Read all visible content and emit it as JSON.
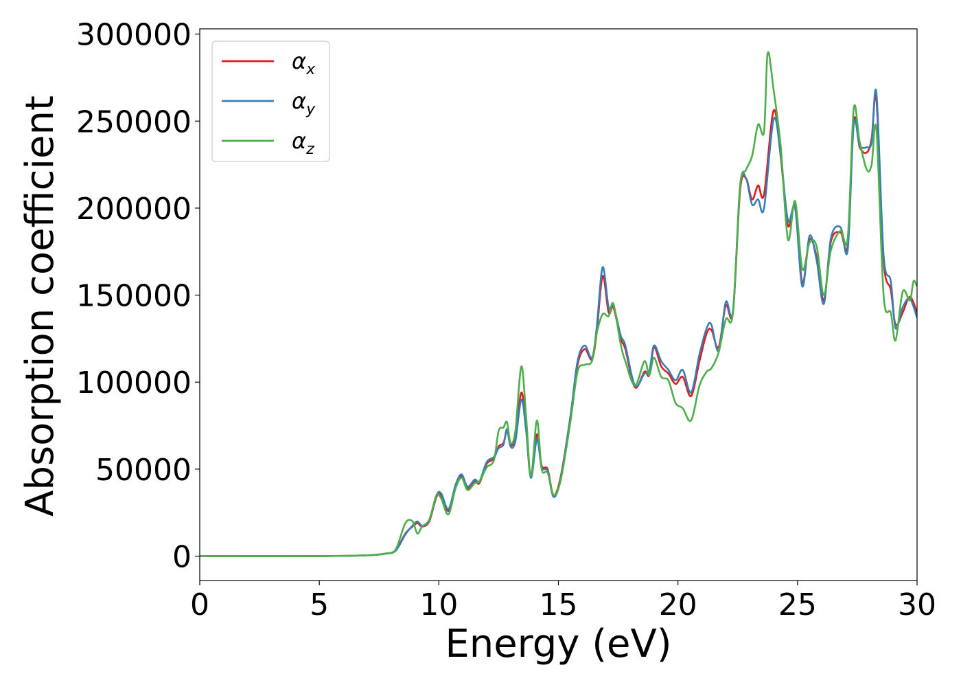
{
  "chart_data": {
    "type": "line",
    "xlabel": "Energy (eV)",
    "ylabel": "Absorption coefficient",
    "xlim": [
      0,
      30
    ],
    "ylim": [
      -14000,
      303000
    ],
    "xticks": [
      "0",
      "5",
      "10",
      "15",
      "20",
      "25",
      "30"
    ],
    "yticks": [
      "0",
      "50000",
      "100000",
      "150000",
      "200000",
      "250000",
      "300000"
    ],
    "grid": false,
    "legend_position": "top-left",
    "series": [
      {
        "name": "α",
        "subscript": "x",
        "color": "#e41a1c",
        "points": [
          [
            0,
            0
          ],
          [
            5,
            0
          ],
          [
            7,
            500
          ],
          [
            7.8,
            1500
          ],
          [
            8.2,
            3500
          ],
          [
            8.6,
            13000
          ],
          [
            8.9,
            17000
          ],
          [
            9.1,
            19000
          ],
          [
            9.3,
            17000
          ],
          [
            9.6,
            20000
          ],
          [
            9.9,
            34000
          ],
          [
            10.1,
            35000
          ],
          [
            10.4,
            26000
          ],
          [
            10.7,
            40000
          ],
          [
            10.95,
            46000
          ],
          [
            11.2,
            39000
          ],
          [
            11.5,
            43000
          ],
          [
            11.7,
            42000
          ],
          [
            12.0,
            53000
          ],
          [
            12.3,
            56000
          ],
          [
            12.5,
            63000
          ],
          [
            12.7,
            65000
          ],
          [
            12.85,
            72000
          ],
          [
            13.0,
            64000
          ],
          [
            13.2,
            68000
          ],
          [
            13.45,
            94000
          ],
          [
            13.65,
            74000
          ],
          [
            13.85,
            46000
          ],
          [
            14.1,
            70000
          ],
          [
            14.3,
            52000
          ],
          [
            14.55,
            50000
          ],
          [
            14.8,
            35000
          ],
          [
            15.1,
            46000
          ],
          [
            15.5,
            80000
          ],
          [
            15.8,
            110000
          ],
          [
            16.1,
            119000
          ],
          [
            16.4,
            113000
          ],
          [
            16.6,
            128000
          ],
          [
            16.85,
            161000
          ],
          [
            17.1,
            140000
          ],
          [
            17.3,
            143000
          ],
          [
            17.6,
            125000
          ],
          [
            17.8,
            119000
          ],
          [
            18.2,
            97000
          ],
          [
            18.6,
            106000
          ],
          [
            18.8,
            104000
          ],
          [
            19.0,
            120000
          ],
          [
            19.3,
            109000
          ],
          [
            19.6,
            105000
          ],
          [
            19.9,
            99000
          ],
          [
            20.2,
            103000
          ],
          [
            20.55,
            92000
          ],
          [
            20.9,
            112000
          ],
          [
            21.2,
            128000
          ],
          [
            21.4,
            130000
          ],
          [
            21.7,
            120000
          ],
          [
            22.0,
            144000
          ],
          [
            22.3,
            140000
          ],
          [
            22.6,
            210000
          ],
          [
            22.85,
            217000
          ],
          [
            23.1,
            205000
          ],
          [
            23.35,
            213000
          ],
          [
            23.6,
            208000
          ],
          [
            24.0,
            256000
          ],
          [
            24.3,
            229000
          ],
          [
            24.6,
            190000
          ],
          [
            24.9,
            201000
          ],
          [
            25.2,
            157000
          ],
          [
            25.5,
            182000
          ],
          [
            25.8,
            172000
          ],
          [
            26.1,
            147000
          ],
          [
            26.4,
            181000
          ],
          [
            26.8,
            186000
          ],
          [
            27.1,
            179000
          ],
          [
            27.35,
            250000
          ],
          [
            27.6,
            235000
          ],
          [
            27.9,
            232000
          ],
          [
            28.1,
            240000
          ],
          [
            28.3,
            262000
          ],
          [
            28.6,
            170000
          ],
          [
            28.9,
            153000
          ],
          [
            29.1,
            133000
          ],
          [
            29.4,
            140000
          ],
          [
            29.7,
            149000
          ],
          [
            30,
            140000
          ]
        ]
      },
      {
        "name": "α",
        "subscript": "y",
        "color": "#377eb8",
        "points": [
          [
            0,
            0
          ],
          [
            5,
            0
          ],
          [
            7,
            500
          ],
          [
            7.8,
            1500
          ],
          [
            8.2,
            3200
          ],
          [
            8.6,
            12500
          ],
          [
            8.9,
            17500
          ],
          [
            9.1,
            20000
          ],
          [
            9.3,
            17500
          ],
          [
            9.6,
            20500
          ],
          [
            9.9,
            35000
          ],
          [
            10.1,
            36000
          ],
          [
            10.4,
            27000
          ],
          [
            10.7,
            41000
          ],
          [
            10.95,
            47000
          ],
          [
            11.2,
            40000
          ],
          [
            11.5,
            44000
          ],
          [
            11.7,
            43000
          ],
          [
            12.0,
            54000
          ],
          [
            12.3,
            57000
          ],
          [
            12.5,
            62000
          ],
          [
            12.7,
            64000
          ],
          [
            12.85,
            73000
          ],
          [
            13.0,
            63000
          ],
          [
            13.2,
            66000
          ],
          [
            13.45,
            90000
          ],
          [
            13.65,
            72000
          ],
          [
            13.85,
            45000
          ],
          [
            14.1,
            67000
          ],
          [
            14.3,
            51000
          ],
          [
            14.55,
            49000
          ],
          [
            14.8,
            34000
          ],
          [
            15.1,
            45000
          ],
          [
            15.5,
            80000
          ],
          [
            15.8,
            112000
          ],
          [
            16.1,
            121000
          ],
          [
            16.4,
            114000
          ],
          [
            16.6,
            131000
          ],
          [
            16.85,
            166000
          ],
          [
            17.1,
            143000
          ],
          [
            17.3,
            144000
          ],
          [
            17.6,
            127000
          ],
          [
            17.8,
            121000
          ],
          [
            18.2,
            98000
          ],
          [
            18.6,
            105000
          ],
          [
            18.8,
            106000
          ],
          [
            19.0,
            121000
          ],
          [
            19.3,
            112000
          ],
          [
            19.6,
            107000
          ],
          [
            19.9,
            101000
          ],
          [
            20.2,
            107000
          ],
          [
            20.55,
            94000
          ],
          [
            20.9,
            116000
          ],
          [
            21.2,
            131000
          ],
          [
            21.4,
            133000
          ],
          [
            21.7,
            118000
          ],
          [
            22.0,
            146000
          ],
          [
            22.3,
            141000
          ],
          [
            22.6,
            213000
          ],
          [
            22.85,
            217000
          ],
          [
            23.1,
            202000
          ],
          [
            23.35,
            205000
          ],
          [
            23.6,
            200000
          ],
          [
            24.0,
            251000
          ],
          [
            24.3,
            230000
          ],
          [
            24.6,
            193000
          ],
          [
            24.9,
            200000
          ],
          [
            25.2,
            155000
          ],
          [
            25.5,
            184000
          ],
          [
            25.8,
            170000
          ],
          [
            26.1,
            145000
          ],
          [
            26.4,
            183000
          ],
          [
            26.8,
            189000
          ],
          [
            27.1,
            176000
          ],
          [
            27.35,
            248000
          ],
          [
            27.6,
            236000
          ],
          [
            27.9,
            235000
          ],
          [
            28.1,
            238000
          ],
          [
            28.3,
            266000
          ],
          [
            28.6,
            173000
          ],
          [
            28.9,
            158000
          ],
          [
            29.1,
            131000
          ],
          [
            29.4,
            143000
          ],
          [
            29.7,
            148000
          ],
          [
            30,
            137000
          ]
        ]
      },
      {
        "name": "α",
        "subscript": "z",
        "color": "#4daf4a",
        "points": [
          [
            0,
            0
          ],
          [
            5,
            0
          ],
          [
            7,
            500
          ],
          [
            7.8,
            1500
          ],
          [
            8.2,
            4000
          ],
          [
            8.6,
            19000
          ],
          [
            8.9,
            20000
          ],
          [
            9.1,
            13000
          ],
          [
            9.3,
            17000
          ],
          [
            9.6,
            21000
          ],
          [
            9.9,
            35000
          ],
          [
            10.1,
            33000
          ],
          [
            10.4,
            24000
          ],
          [
            10.7,
            39000
          ],
          [
            10.95,
            45000
          ],
          [
            11.2,
            38000
          ],
          [
            11.5,
            42000
          ],
          [
            11.7,
            43000
          ],
          [
            12.0,
            51000
          ],
          [
            12.3,
            55000
          ],
          [
            12.5,
            72000
          ],
          [
            12.7,
            74000
          ],
          [
            12.85,
            77000
          ],
          [
            13.0,
            65000
          ],
          [
            13.2,
            72000
          ],
          [
            13.45,
            109000
          ],
          [
            13.65,
            80000
          ],
          [
            13.85,
            46000
          ],
          [
            14.1,
            78000
          ],
          [
            14.3,
            50000
          ],
          [
            14.55,
            48000
          ],
          [
            14.8,
            35000
          ],
          [
            15.1,
            44000
          ],
          [
            15.5,
            77000
          ],
          [
            15.8,
            106000
          ],
          [
            16.1,
            110000
          ],
          [
            16.4,
            112000
          ],
          [
            16.6,
            128000
          ],
          [
            16.85,
            139000
          ],
          [
            17.1,
            138000
          ],
          [
            17.3,
            145000
          ],
          [
            17.6,
            122000
          ],
          [
            17.8,
            112000
          ],
          [
            18.2,
            98000
          ],
          [
            18.6,
            112000
          ],
          [
            18.8,
            104000
          ],
          [
            19.0,
            114000
          ],
          [
            19.3,
            103000
          ],
          [
            19.6,
            101000
          ],
          [
            19.9,
            88000
          ],
          [
            20.2,
            85000
          ],
          [
            20.55,
            78000
          ],
          [
            20.9,
            98000
          ],
          [
            21.2,
            106000
          ],
          [
            21.4,
            108000
          ],
          [
            21.7,
            117000
          ],
          [
            22.0,
            136000
          ],
          [
            22.3,
            140000
          ],
          [
            22.6,
            212000
          ],
          [
            22.85,
            222000
          ],
          [
            23.1,
            230000
          ],
          [
            23.35,
            248000
          ],
          [
            23.6,
            244000
          ],
          [
            23.75,
            289000
          ],
          [
            24.0,
            268000
          ],
          [
            24.3,
            235000
          ],
          [
            24.6,
            182000
          ],
          [
            24.9,
            204000
          ],
          [
            25.2,
            165000
          ],
          [
            25.5,
            180000
          ],
          [
            25.8,
            178000
          ],
          [
            26.1,
            150000
          ],
          [
            26.4,
            176000
          ],
          [
            26.8,
            187000
          ],
          [
            27.1,
            183000
          ],
          [
            27.35,
            257000
          ],
          [
            27.6,
            238000
          ],
          [
            27.9,
            222000
          ],
          [
            28.1,
            225000
          ],
          [
            28.3,
            245000
          ],
          [
            28.6,
            150000
          ],
          [
            28.9,
            140000
          ],
          [
            29.1,
            124000
          ],
          [
            29.4,
            152000
          ],
          [
            29.7,
            147000
          ],
          [
            29.85,
            158000
          ],
          [
            30,
            155000
          ]
        ]
      }
    ]
  }
}
